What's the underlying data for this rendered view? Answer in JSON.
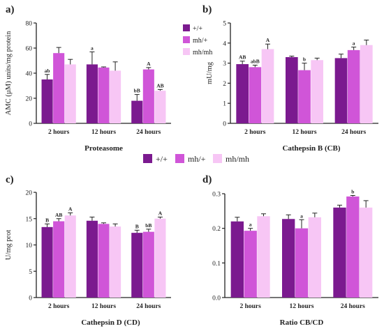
{
  "colors": {
    "s1": "#7b1a8f",
    "s2": "#d055d8",
    "s3": "#f7c6f5",
    "axis": "#222222"
  },
  "legend": [
    {
      "name": "+/+",
      "color": "#7b1a8f"
    },
    {
      "name": "mh/+",
      "color": "#d055d8"
    },
    {
      "name": "mh/mh",
      "color": "#f7c6f5"
    }
  ],
  "chart_data": [
    {
      "type": "bar",
      "panel": "a)",
      "title": "Proteasome",
      "xlabel": "",
      "ylabel": "AMC (µM) units/mg protein",
      "categories": [
        "2 hours",
        "12 hours",
        "24 hours"
      ],
      "ylim": [
        0,
        80
      ],
      "yticks": [
        0,
        20,
        40,
        60,
        80
      ],
      "series": [
        {
          "name": "+/+",
          "values": [
            35,
            47,
            18
          ],
          "errors": [
            4,
            10,
            5
          ],
          "labels": [
            "ab",
            "a",
            "bB"
          ]
        },
        {
          "name": "mh/+",
          "values": [
            56,
            44.5,
            43
          ],
          "errors": [
            4.5,
            0.5,
            1.5
          ],
          "labels": [
            "",
            "",
            "A"
          ]
        },
        {
          "name": "mh/mh",
          "values": [
            47,
            42,
            26
          ],
          "errors": [
            4,
            7,
            1
          ],
          "labels": [
            "",
            "",
            "AB"
          ]
        }
      ]
    },
    {
      "type": "bar",
      "panel": "b)",
      "title": "Cathepsin B (CB)",
      "xlabel": "",
      "ylabel": "mU/mg",
      "categories": [
        "2 hours",
        "12 hours",
        "24 hours"
      ],
      "ylim": [
        0,
        5
      ],
      "yticks": [
        0,
        1,
        2,
        3,
        4,
        5
      ],
      "series": [
        {
          "name": "+/+",
          "values": [
            2.95,
            3.3,
            3.25
          ],
          "errors": [
            0.15,
            0.05,
            0.2
          ],
          "labels": [
            "AB",
            "",
            ""
          ]
        },
        {
          "name": "mh/+",
          "values": [
            2.8,
            2.65,
            3.65
          ],
          "errors": [
            0.1,
            0.35,
            0.15
          ],
          "labels": [
            "abB",
            "b",
            "a"
          ]
        },
        {
          "name": "mh/mh",
          "values": [
            3.7,
            3.15,
            3.9
          ],
          "errors": [
            0.25,
            0.1,
            0.25
          ],
          "labels": [
            "A",
            "",
            ""
          ]
        }
      ]
    },
    {
      "type": "bar",
      "panel": "c)",
      "title": "Cathepsin D (CD)",
      "xlabel": "",
      "ylabel": "U/mg prot",
      "categories": [
        "2 hours",
        "12 hours",
        "24 hours"
      ],
      "ylim": [
        0,
        20
      ],
      "yticks": [
        0,
        5,
        10,
        15,
        20
      ],
      "series": [
        {
          "name": "+/+",
          "values": [
            13.4,
            14.6,
            12.3
          ],
          "errors": [
            0.6,
            0.7,
            0.5
          ],
          "labels": [
            "B",
            "",
            "B"
          ]
        },
        {
          "name": "mh/+",
          "values": [
            14.5,
            14.0,
            12.5
          ],
          "errors": [
            0.5,
            0.2,
            0.5
          ],
          "labels": [
            "AB",
            "",
            "bB"
          ]
        },
        {
          "name": "mh/mh",
          "values": [
            15.6,
            13.5,
            15.0
          ],
          "errors": [
            0.5,
            0.5,
            0.3
          ],
          "labels": [
            "A",
            "",
            "A"
          ]
        }
      ]
    },
    {
      "type": "bar",
      "panel": "d)",
      "title": "Ratio CB/CD",
      "xlabel": "",
      "ylabel": "",
      "categories": [
        "2 hours",
        "12 hours",
        "24 hours"
      ],
      "ylim": [
        0,
        0.3
      ],
      "yticks": [
        0.0,
        0.1,
        0.2,
        0.3
      ],
      "series": [
        {
          "name": "+/+",
          "values": [
            0.22,
            0.227,
            0.26
          ],
          "errors": [
            0.012,
            0.012,
            0.007
          ],
          "labels": [
            "",
            "",
            ""
          ]
        },
        {
          "name": "mh/+",
          "values": [
            0.193,
            0.2,
            0.292
          ],
          "errors": [
            0.007,
            0.025,
            0.003
          ],
          "labels": [
            "a",
            "a",
            "b"
          ]
        },
        {
          "name": "mh/mh",
          "values": [
            0.235,
            0.232,
            0.26
          ],
          "errors": [
            0.007,
            0.012,
            0.02
          ],
          "labels": [
            "",
            "",
            ""
          ]
        }
      ]
    }
  ]
}
